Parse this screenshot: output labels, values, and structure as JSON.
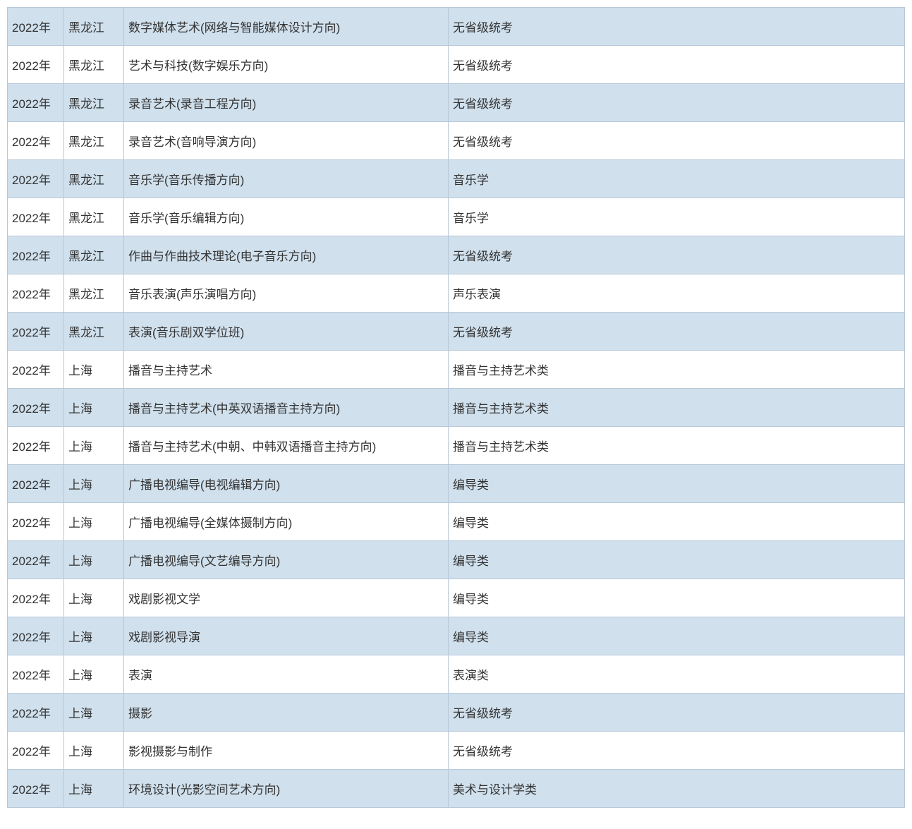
{
  "table": {
    "colors": {
      "odd_row_bg": "#d0e0ed",
      "even_row_bg": "#ffffff",
      "border_color": "#b8c8d8",
      "text_color": "#333333"
    },
    "font_size": 17,
    "column_widths": {
      "year": 80,
      "province": 85,
      "major": 460
    },
    "rows": [
      {
        "year": "2022年",
        "province": "黑龙江",
        "major": "数字媒体艺术(网络与智能媒体设计方向)",
        "subject": "无省级统考"
      },
      {
        "year": "2022年",
        "province": "黑龙江",
        "major": "艺术与科技(数字娱乐方向)",
        "subject": "无省级统考"
      },
      {
        "year": "2022年",
        "province": "黑龙江",
        "major": "录音艺术(录音工程方向)",
        "subject": "无省级统考"
      },
      {
        "year": "2022年",
        "province": "黑龙江",
        "major": "录音艺术(音响导演方向)",
        "subject": "无省级统考"
      },
      {
        "year": "2022年",
        "province": "黑龙江",
        "major": "音乐学(音乐传播方向)",
        "subject": "音乐学"
      },
      {
        "year": "2022年",
        "province": "黑龙江",
        "major": "音乐学(音乐编辑方向)",
        "subject": "音乐学"
      },
      {
        "year": "2022年",
        "province": "黑龙江",
        "major": "作曲与作曲技术理论(电子音乐方向)",
        "subject": "无省级统考"
      },
      {
        "year": "2022年",
        "province": "黑龙江",
        "major": "音乐表演(声乐演唱方向)",
        "subject": "声乐表演"
      },
      {
        "year": "2022年",
        "province": "黑龙江",
        "major": "表演(音乐剧双学位班)",
        "subject": "无省级统考"
      },
      {
        "year": "2022年",
        "province": "上海",
        "major": "播音与主持艺术",
        "subject": "播音与主持艺术类"
      },
      {
        "year": "2022年",
        "province": "上海",
        "major": "播音与主持艺术(中英双语播音主持方向)",
        "subject": "播音与主持艺术类"
      },
      {
        "year": "2022年",
        "province": "上海",
        "major": "播音与主持艺术(中朝、中韩双语播音主持方向)",
        "subject": "播音与主持艺术类"
      },
      {
        "year": "2022年",
        "province": "上海",
        "major": "广播电视编导(电视编辑方向)",
        "subject": "编导类"
      },
      {
        "year": "2022年",
        "province": "上海",
        "major": "广播电视编导(全媒体摄制方向)",
        "subject": "编导类"
      },
      {
        "year": "2022年",
        "province": "上海",
        "major": "广播电视编导(文艺编导方向)",
        "subject": "编导类"
      },
      {
        "year": "2022年",
        "province": "上海",
        "major": "戏剧影视文学",
        "subject": "编导类"
      },
      {
        "year": "2022年",
        "province": "上海",
        "major": "戏剧影视导演",
        "subject": "编导类"
      },
      {
        "year": "2022年",
        "province": "上海",
        "major": "表演",
        "subject": "表演类"
      },
      {
        "year": "2022年",
        "province": "上海",
        "major": "摄影",
        "subject": "无省级统考"
      },
      {
        "year": "2022年",
        "province": "上海",
        "major": "影视摄影与制作",
        "subject": "无省级统考"
      },
      {
        "year": "2022年",
        "province": "上海",
        "major": "环境设计(光影空间艺术方向)",
        "subject": "美术与设计学类"
      }
    ]
  }
}
